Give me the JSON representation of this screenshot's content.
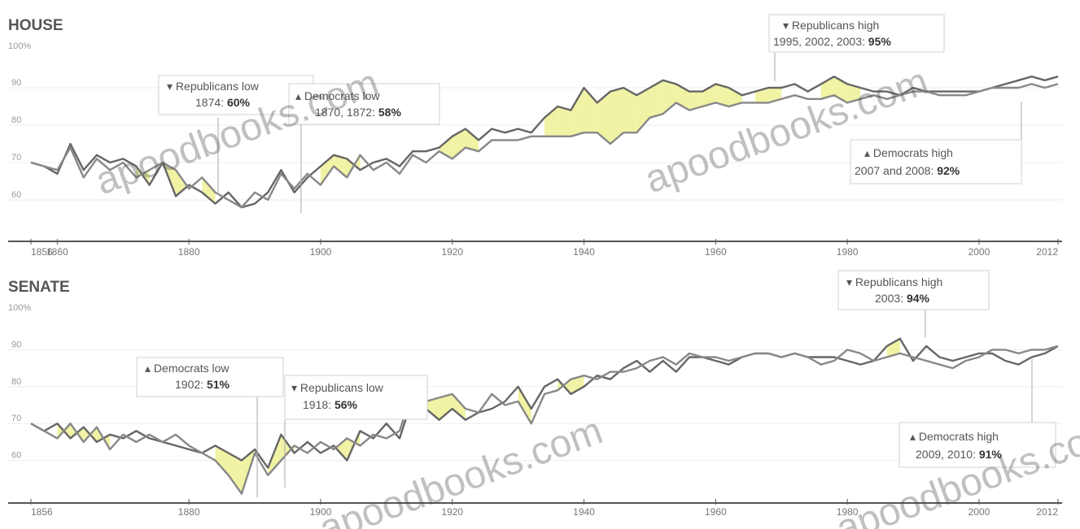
{
  "chart_data": [
    {
      "type": "line",
      "title": "HOUSE",
      "xlabel": "",
      "ylabel": "",
      "y_axis_top_label": "100%",
      "y_tick_labels": [
        "90",
        "80",
        "70",
        "60"
      ],
      "ylim": [
        50,
        100
      ],
      "xlim": [
        1856,
        2012
      ],
      "x_ticks": [
        1856,
        1860,
        1880,
        1900,
        1920,
        1940,
        1960,
        1980,
        2000,
        2012
      ],
      "x_tick_labels": [
        "1856",
        "1860",
        "1880",
        "1900",
        "1920",
        "1940",
        "1960",
        "1980",
        "2000",
        "2012"
      ],
      "grid": true,
      "series": [
        {
          "x": [
            1856,
            1858,
            1860,
            1862,
            1864,
            1866,
            1868,
            1870,
            1872,
            1874,
            1876,
            1878,
            1880,
            1882,
            1884,
            1886,
            1888,
            1890,
            1892,
            1894,
            1896,
            1898,
            1900,
            1902,
            1904,
            1906,
            1908,
            1910,
            1912,
            1914,
            1916,
            1918,
            1920,
            1922,
            1924,
            1926,
            1928,
            1930,
            1932,
            1934,
            1936,
            1938,
            1940,
            1942,
            1944,
            1946,
            1948,
            1950,
            1952,
            1954,
            1956,
            1958,
            1960,
            1962,
            1964,
            1966,
            1968,
            1970,
            1972,
            1974,
            1976,
            1978,
            1980,
            1982,
            1984,
            1986,
            1988,
            1990,
            1992,
            1994,
            1996,
            1998,
            2000,
            2002,
            2004,
            2006,
            2008,
            2010,
            2012
          ],
          "values": [
            70,
            69,
            67,
            75,
            68,
            72,
            70,
            71,
            69,
            64,
            70,
            61,
            64,
            62,
            59,
            62,
            58,
            59,
            62,
            68,
            62,
            66,
            69,
            72,
            71,
            68,
            70,
            71,
            69,
            73,
            73,
            74,
            77,
            79,
            76,
            79,
            78,
            79,
            78,
            82,
            85,
            84,
            90,
            86,
            89,
            90,
            88,
            90,
            92,
            91,
            89,
            89,
            91,
            90,
            88,
            89,
            90,
            90,
            91,
            89,
            91,
            93,
            91,
            90,
            89,
            89,
            88,
            90,
            89,
            89,
            89,
            89,
            89,
            90,
            91,
            92,
            93,
            92,
            93
          ]
        },
        {
          "x": [
            1856,
            1858,
            1860,
            1862,
            1864,
            1866,
            1868,
            1870,
            1872,
            1874,
            1876,
            1878,
            1880,
            1882,
            1884,
            1886,
            1888,
            1890,
            1892,
            1894,
            1896,
            1898,
            1900,
            1902,
            1904,
            1906,
            1908,
            1910,
            1912,
            1914,
            1916,
            1918,
            1920,
            1922,
            1924,
            1926,
            1928,
            1930,
            1932,
            1934,
            1936,
            1938,
            1940,
            1942,
            1944,
            1946,
            1948,
            1950,
            1952,
            1954,
            1956,
            1958,
            1960,
            1962,
            1964,
            1966,
            1968,
            1970,
            1972,
            1974,
            1976,
            1978,
            1980,
            1982,
            1984,
            1986,
            1988,
            1990,
            1992,
            1994,
            1996,
            1998,
            2000,
            2002,
            2004,
            2006,
            2008,
            2010,
            2012
          ],
          "values": [
            70,
            69,
            68,
            74,
            66,
            71,
            68,
            70,
            66,
            68,
            70,
            68,
            63,
            66,
            62,
            60,
            58,
            62,
            60,
            67,
            63,
            67,
            64,
            69,
            66,
            72,
            68,
            70,
            67,
            72,
            70,
            73,
            71,
            74,
            73,
            76,
            76,
            76,
            77,
            77,
            77,
            77,
            78,
            78,
            75,
            78,
            78,
            82,
            83,
            86,
            84,
            85,
            86,
            85,
            86,
            86,
            86,
            87,
            88,
            87,
            87,
            88,
            86,
            87,
            88,
            87,
            88,
            89,
            89,
            88,
            88,
            88,
            89,
            90,
            90,
            90,
            91,
            90,
            91
          ]
        }
      ],
      "annotations": [
        {
          "line1": "Republicans low",
          "line2_prefix": "1874: ",
          "value": "60%"
        },
        {
          "line1": "Democrats low",
          "line2_prefix": "1870, 1872: ",
          "value": 58
        },
        {
          "line1": "Republicans high",
          "line2_prefix": "1995, 2002, 2003: ",
          "value": "95%"
        },
        {
          "line1": "Democrats high",
          "line2_prefix": "2007 and 2008: ",
          "value": "92%"
        }
      ]
    },
    {
      "type": "line",
      "title": "SENATE",
      "xlabel": "",
      "ylabel": "",
      "y_axis_top_label": "100%",
      "y_tick_labels": [
        "90",
        "80",
        "70",
        "60"
      ],
      "ylim": [
        50,
        100
      ],
      "xlim": [
        1856,
        2012
      ],
      "x_ticks": [
        1856,
        1880,
        1900,
        1920,
        1940,
        1960,
        1980,
        2000,
        2012
      ],
      "x_tick_labels": [
        "1856",
        "1880",
        "1900",
        "1920",
        "1940",
        "1960",
        "1980",
        "2000",
        "2012"
      ],
      "grid": true,
      "series": [
        {
          "x": [
            1856,
            1858,
            1860,
            1862,
            1864,
            1866,
            1868,
            1870,
            1872,
            1874,
            1876,
            1878,
            1880,
            1882,
            1884,
            1886,
            1888,
            1890,
            1892,
            1894,
            1896,
            1898,
            1900,
            1902,
            1904,
            1906,
            1908,
            1910,
            1912,
            1914,
            1916,
            1918,
            1920,
            1922,
            1924,
            1926,
            1928,
            1930,
            1932,
            1934,
            1936,
            1938,
            1940,
            1942,
            1944,
            1946,
            1948,
            1950,
            1952,
            1954,
            1956,
            1958,
            1960,
            1962,
            1964,
            1966,
            1968,
            1970,
            1972,
            1974,
            1976,
            1978,
            1980,
            1982,
            1984,
            1986,
            1988,
            1990,
            1992,
            1994,
            1996,
            1998,
            2000,
            2002,
            2004,
            2006,
            2008,
            2010,
            2012
          ],
          "values": [
            70,
            68,
            70,
            66,
            69,
            65,
            67,
            66,
            68,
            66,
            65,
            64,
            63,
            62,
            64,
            62,
            60,
            63,
            58,
            67,
            62,
            65,
            62,
            64,
            60,
            68,
            66,
            70,
            66,
            77,
            74,
            71,
            74,
            71,
            73,
            74,
            76,
            80,
            74,
            80,
            82,
            78,
            80,
            83,
            82,
            85,
            87,
            84,
            87,
            84,
            88,
            88,
            87,
            86,
            88,
            89,
            89,
            88,
            89,
            88,
            88,
            88,
            87,
            86,
            87,
            91,
            93,
            87,
            91,
            88,
            87,
            88,
            89,
            89,
            87,
            86,
            88,
            89,
            91
          ]
        },
        {
          "x": [
            1856,
            1858,
            1860,
            1862,
            1864,
            1866,
            1868,
            1870,
            1872,
            1874,
            1876,
            1878,
            1880,
            1882,
            1884,
            1886,
            1888,
            1890,
            1892,
            1894,
            1896,
            1898,
            1900,
            1902,
            1904,
            1906,
            1908,
            1910,
            1912,
            1914,
            1916,
            1918,
            1920,
            1922,
            1924,
            1926,
            1928,
            1930,
            1932,
            1934,
            1936,
            1938,
            1940,
            1942,
            1944,
            1946,
            1948,
            1950,
            1952,
            1954,
            1956,
            1958,
            1960,
            1962,
            1964,
            1966,
            1968,
            1970,
            1972,
            1974,
            1976,
            1978,
            1980,
            1982,
            1984,
            1986,
            1988,
            1990,
            1992,
            1994,
            1996,
            1998,
            2000,
            2002,
            2004,
            2006,
            2008,
            2010,
            2012
          ],
          "values": [
            70,
            68,
            66,
            70,
            65,
            69,
            63,
            67,
            65,
            67,
            65,
            67,
            64,
            62,
            60,
            56,
            51,
            62,
            56,
            60,
            64,
            62,
            65,
            63,
            66,
            64,
            67,
            66,
            68,
            79,
            76,
            77,
            78,
            74,
            73,
            78,
            75,
            76,
            70,
            78,
            79,
            82,
            83,
            82,
            84,
            84,
            85,
            87,
            88,
            86,
            89,
            88,
            88,
            87,
            88,
            89,
            89,
            88,
            89,
            88,
            86,
            87,
            90,
            89,
            87,
            88,
            89,
            88,
            87,
            86,
            85,
            87,
            88,
            90,
            90,
            89,
            90,
            90,
            91
          ]
        }
      ],
      "annotations": [
        {
          "line1": "Democrats low",
          "line2_prefix": "1902: ",
          "value": "51%"
        },
        {
          "line1": "Republicans low",
          "line2_prefix": "1918: ",
          "value": "56%"
        },
        {
          "line1": "Republicans high",
          "line2_prefix": "2003: ",
          "value": "94%"
        },
        {
          "line1": "Democrats high",
          "line2_prefix": "2009, 2010: ",
          "value": "91%"
        }
      ]
    }
  ],
  "watermark": "apoodbooks.com",
  "colors": {
    "republican_line": "#666666",
    "democrat_line": "#888888",
    "highlight": "#eef29a"
  }
}
